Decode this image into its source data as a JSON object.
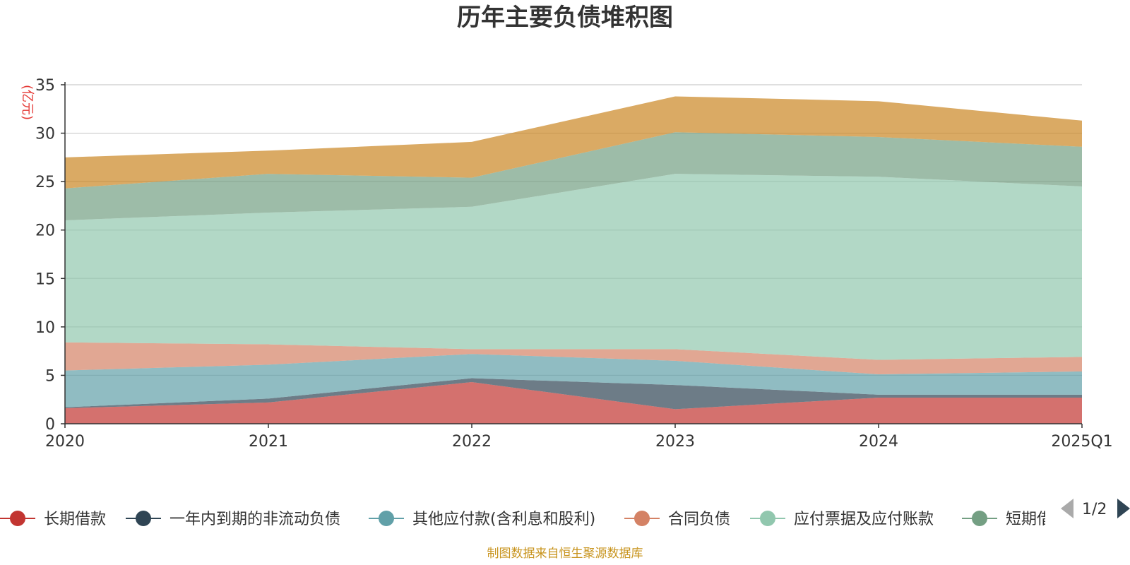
{
  "chart_data": {
    "type": "area",
    "stacked": true,
    "title": "历年主要负债堆积图",
    "unit_label": "(亿元)",
    "categories": [
      "2020",
      "2021",
      "2022",
      "2023",
      "2024",
      "2025Q1"
    ],
    "ylim": [
      0,
      35
    ],
    "yticks": [
      0,
      5,
      10,
      15,
      20,
      25,
      30,
      35
    ],
    "grid": true,
    "legend_position": "bottom",
    "series": [
      {
        "name": "长期借款",
        "color": "#c23531",
        "values": [
          1.6,
          2.2,
          4.3,
          1.5,
          2.7,
          2.7
        ]
      },
      {
        "name": "一年内到期的非流动负债",
        "color": "#2f4554",
        "values": [
          0.1,
          0.4,
          0.4,
          2.5,
          0.3,
          0.3
        ]
      },
      {
        "name": "其他应付款(含利息和股利)",
        "color": "#61a0a8",
        "values": [
          3.8,
          3.5,
          2.5,
          2.5,
          2.1,
          2.4
        ]
      },
      {
        "name": "合同负债",
        "color": "#d48265",
        "values": [
          2.9,
          2.1,
          0.5,
          1.2,
          1.5,
          1.5
        ]
      },
      {
        "name": "应付票据及应付账款",
        "color": "#91c7ae",
        "values": [
          12.6,
          13.6,
          14.7,
          18.1,
          18.9,
          17.6
        ]
      },
      {
        "name": "短期借款",
        "color": "#749f83",
        "values": [
          3.3,
          4.0,
          3.0,
          4.3,
          4.1,
          4.1
        ]
      },
      {
        "name": "",
        "color": "#ca8622",
        "values": [
          3.2,
          2.4,
          3.7,
          3.7,
          3.7,
          2.7
        ]
      }
    ]
  },
  "legend_page": "1/2",
  "source_note": "制图数据来自恒生聚源数据库"
}
